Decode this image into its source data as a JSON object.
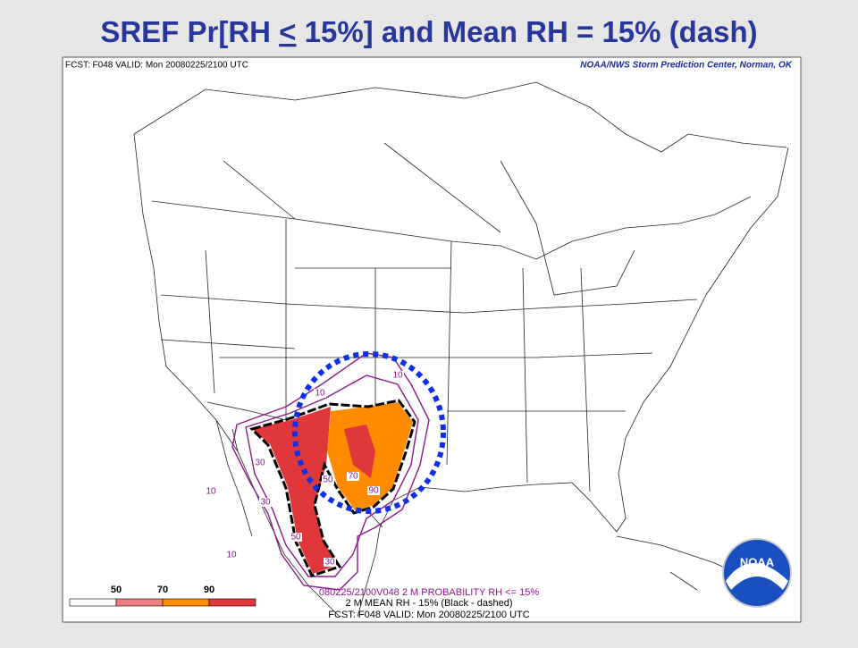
{
  "title": {
    "before": "SREF Pr[RH ",
    "underlined": "<",
    "after": " 15%] and Mean RH = 15% (dash)"
  },
  "map": {
    "header_left": "FCST: F048  VALID: Mon  20080225/2100 UTC",
    "header_right": "NOAA/NWS Storm Prediction Center, Norman, OK",
    "contour_labels": [
      10,
      10,
      30,
      10,
      30,
      50,
      70,
      90,
      50,
      10,
      30
    ],
    "legend": {
      "labels": [
        50,
        70,
        90
      ],
      "colors": [
        "#ffffff",
        "#f08080",
        "#ff8c00",
        "#e0383a"
      ]
    },
    "footer": [
      "080225/2100V048 2 M PROBABILITY RH <= 15%",
      "2 M MEAN RH - 15% (Black - dashed)",
      "FCST: F048  VALID: Mon  20080225/2100 UTC"
    ],
    "logo": "NOAA"
  }
}
